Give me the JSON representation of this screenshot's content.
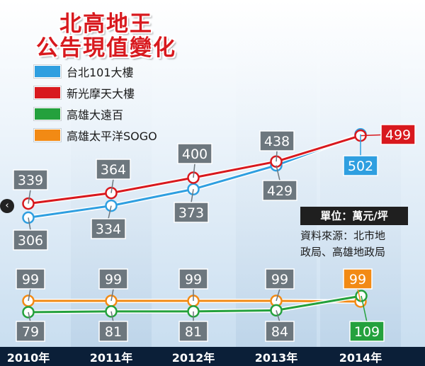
{
  "header": {
    "title_line1": "北高地王",
    "title_line2": "公告現值變化"
  },
  "legend": [
    {
      "label": "台北101大樓",
      "color": "#2f9fe0"
    },
    {
      "label": "新光摩天大樓",
      "color": "#d8191e"
    },
    {
      "label": "高雄大遠百",
      "color": "#24a13d"
    },
    {
      "label": "高雄太平洋SOGO",
      "color": "#f28a14"
    }
  ],
  "note": {
    "unit": "單位：萬元/坪",
    "source_line1": "資料來源：北市地",
    "source_line2": "政局、高雄地政局"
  },
  "nav": {
    "prev_icon": "chevron-left-icon",
    "prev_glyph": "‹"
  },
  "colors": {
    "taipei101": "#2f9fe0",
    "shinkong": "#d8191e",
    "fedo": "#24a13d",
    "sogo": "#f28a14",
    "label_gray": "#6d777e",
    "axis_bar": "#0b1f38"
  },
  "chart_data": {
    "type": "line",
    "categories": [
      "2010年",
      "2011年",
      "2012年",
      "2013年",
      "2014年"
    ],
    "series": [
      {
        "name": "台北101大樓",
        "values": [
          306,
          334,
          373,
          429,
          502
        ]
      },
      {
        "name": "新光摩天大樓",
        "values": [
          339,
          364,
          400,
          438,
          499
        ]
      },
      {
        "name": "高雄大遠百",
        "values": [
          79,
          81,
          81,
          84,
          109
        ]
      },
      {
        "name": "高雄太平洋SOGO",
        "values": [
          99,
          99,
          99,
          99,
          99
        ]
      }
    ]
  }
}
